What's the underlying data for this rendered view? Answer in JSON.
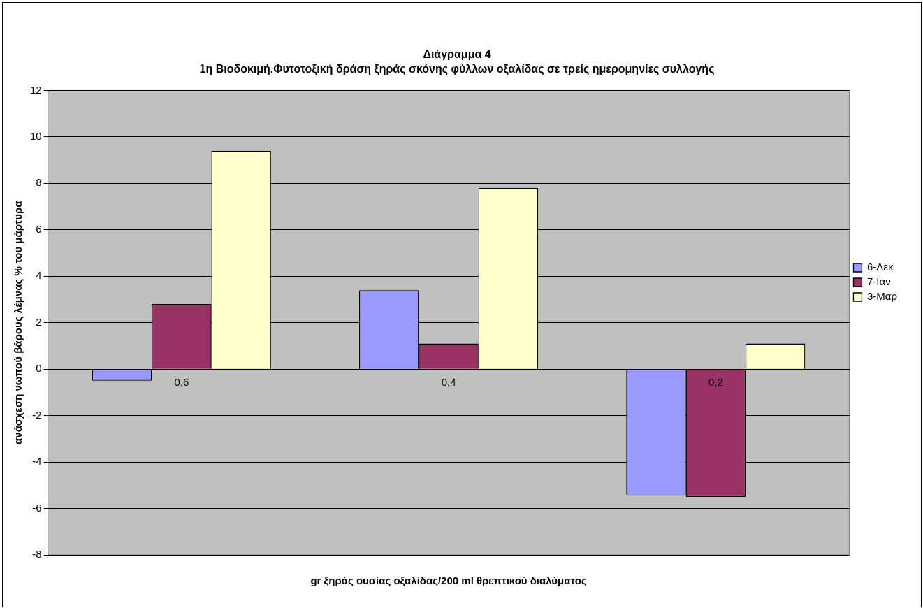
{
  "chart_data": {
    "type": "bar",
    "title": "Διάγραμμα 4",
    "subtitle": "1η Βιοδοκιμή.Φυτοτοξική δράση ξηράς σκόνης φύλλων οξαλίδας σε τρείς ημερομηνίες συλλογής",
    "xlabel": "gr ξηράς ουσίας οξαλίδας/200 ml θρεπτικού διαλύματος",
    "ylabel": "ανάσχεση νωπού βάρους λέμνας % του μάρτυρα",
    "categories": [
      "0,6",
      "0,4",
      "0,2"
    ],
    "series": [
      {
        "name": "6-Δεκ",
        "color": "#9999ff",
        "values": [
          -0.5,
          3.4,
          -5.45
        ]
      },
      {
        "name": "7-Ιαν",
        "color": "#993366",
        "values": [
          2.8,
          1.1,
          -5.5
        ]
      },
      {
        "name": "3-Μαρ",
        "color": "#ffffcc",
        "values": [
          9.4,
          7.8,
          1.1
        ]
      }
    ],
    "ylim": [
      -8,
      12
    ],
    "yticks": [
      -8,
      -6,
      -4,
      -2,
      0,
      2,
      4,
      6,
      8,
      10,
      12
    ],
    "grid": "y",
    "legend": "right"
  }
}
